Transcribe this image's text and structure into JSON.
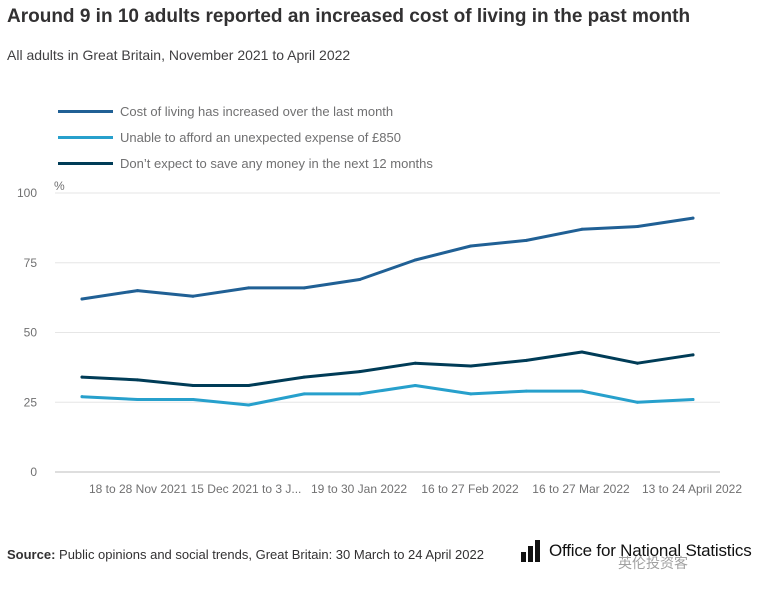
{
  "title": "Around 9 in 10 adults reported an increased cost of living in the past month",
  "subtitle": "All adults in Great Britain, November 2021 to April 2022",
  "source_label": "Source:",
  "source_text": "Public opinions and social trends, Great Britain: 30 March to 24 April 2022",
  "logo_text": "Office for National Statistics",
  "watermark_text": "英伦投资客",
  "colors": {
    "series1": "#206095",
    "series2": "#27a0cc",
    "series3": "#003c57",
    "grid": "#e6e6e6",
    "axis_text": "#707071"
  },
  "chart_data": {
    "type": "line",
    "title": "Around 9 in 10 adults reported an increased cost of living in the past month",
    "subtitle": "All adults in Great Britain, November 2021 to April 2022",
    "ylabel": "%",
    "ylim": [
      0,
      100
    ],
    "yticks": [
      0,
      25,
      50,
      75,
      100
    ],
    "grid": true,
    "legend": "top-left",
    "tick_labels": [
      "18 to 28 Nov 2021",
      "15 Dec 2021 to 3 J...",
      "19 to 30 Jan 2022",
      "16 to 27 Feb 2022",
      "16 to 27 Mar 2022",
      "13 to 24 April 2022"
    ],
    "n_points": 12,
    "series": [
      {
        "name": "Cost of living has increased over the last month",
        "color": "#206095",
        "values": [
          62,
          65,
          63,
          66,
          66,
          69,
          76,
          81,
          83,
          87,
          88,
          91
        ]
      },
      {
        "name": "Unable to afford an unexpected expense of £850",
        "color": "#27a0cc",
        "values": [
          27,
          26,
          26,
          24,
          28,
          28,
          31,
          28,
          29,
          29,
          25,
          26
        ]
      },
      {
        "name": "Don’t expect to save any money in the next 12 months",
        "color": "#003c57",
        "values": [
          34,
          33,
          31,
          31,
          34,
          36,
          39,
          38,
          40,
          43,
          39,
          42
        ]
      }
    ]
  }
}
